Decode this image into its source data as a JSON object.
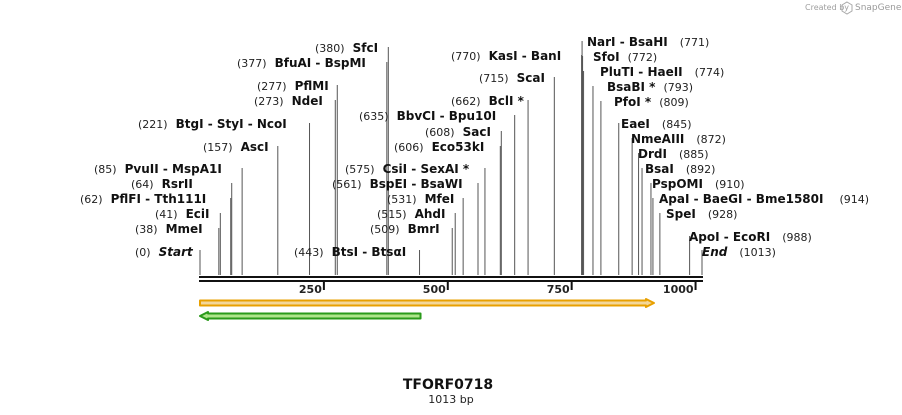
{
  "credit": {
    "created_by": "Created by",
    "brand": "SnapGene"
  },
  "sequence": {
    "name": "TFORF0718",
    "length_label": "1013 bp",
    "length": 1013
  },
  "axis": {
    "ticks": [
      250,
      500,
      750,
      1000
    ]
  },
  "features": {
    "orf_forward": {
      "start": 0,
      "end": 910,
      "color": "#e8a000"
    },
    "orf_reverse": {
      "start": 0,
      "end": 445,
      "color": "#2a9a1a"
    }
  },
  "colors": {
    "backbone": "#111111",
    "orange": "#e8a000",
    "orange_fill": "#f3d79a",
    "green": "#2a9a1a",
    "green_fill": "#aee58a"
  },
  "sites": [
    {
      "pos": "(0)",
      "name": "Start",
      "loc": 0
    },
    {
      "pos": "(38)",
      "name": "MmeI",
      "loc": 38
    },
    {
      "pos": "(41)",
      "name": "EciI",
      "loc": 41
    },
    {
      "pos": "(62)",
      "name": "PflFI  -  Tth111I",
      "loc": 62
    },
    {
      "pos": "(64)",
      "name": "RsrII",
      "loc": 64
    },
    {
      "pos": "(85)",
      "name": "PvuII  -  MspA1I",
      "loc": 85
    },
    {
      "pos": "(157)",
      "name": "AscI",
      "loc": 157
    },
    {
      "pos": "(221)",
      "name": "BtgI  -  StyI  -  NcoI",
      "loc": 221
    },
    {
      "pos": "(273)",
      "name": "NdeI",
      "loc": 273
    },
    {
      "pos": "(277)",
      "name": "PflMI",
      "loc": 277
    },
    {
      "pos": "(377)",
      "name": "BfuAI  -  BspMI",
      "loc": 377
    },
    {
      "pos": "(380)",
      "name": "SfcI",
      "loc": 380
    },
    {
      "pos": "(443)",
      "name": "BtsI  -  BtsαI",
      "loc": 443
    },
    {
      "pos": "(509)",
      "name": "BmrI",
      "loc": 509
    },
    {
      "pos": "(515)",
      "name": "AhdI",
      "loc": 515
    },
    {
      "pos": "(531)",
      "name": "MfeI",
      "loc": 531
    },
    {
      "pos": "(561)",
      "name": "BspEI  -  BsaWI",
      "loc": 561
    },
    {
      "pos": "(575)",
      "name": "CsiI  -  SexAI *",
      "loc": 575
    },
    {
      "pos": "(606)",
      "name": "Eco53kI",
      "loc": 606
    },
    {
      "pos": "(608)",
      "name": "SacI",
      "loc": 608
    },
    {
      "pos": "(635)",
      "name": "BbvCI  -  Bpu10I",
      "loc": 635
    },
    {
      "pos": "(662)",
      "name": "BclI *",
      "loc": 662
    },
    {
      "pos": "(715)",
      "name": "ScaI",
      "loc": 715
    },
    {
      "pos": "(770)",
      "name": "KasI  -  BanI",
      "loc": 770
    },
    {
      "pos": "(771)",
      "name": "NarI  -  BsaHI",
      "loc": 771
    },
    {
      "pos": "(772)",
      "name": "SfoI",
      "loc": 772
    },
    {
      "pos": "(774)",
      "name": "PluTI  -  HaeII",
      "loc": 774
    },
    {
      "pos": "(793)",
      "name": "BsaBI *",
      "loc": 793
    },
    {
      "pos": "(809)",
      "name": "PfoI *",
      "loc": 809
    },
    {
      "pos": "(845)",
      "name": "EaeI",
      "loc": 845
    },
    {
      "pos": "(872)",
      "name": "NmeAIII",
      "loc": 872
    },
    {
      "pos": "(885)",
      "name": "DrdI",
      "loc": 885
    },
    {
      "pos": "(892)",
      "name": "BsaI",
      "loc": 892
    },
    {
      "pos": "(910)",
      "name": "PspOMI",
      "loc": 910
    },
    {
      "pos": "(914)",
      "name": "ApaI  -  BaeGI  -  Bme1580I",
      "loc": 914
    },
    {
      "pos": "(928)",
      "name": "SpeI",
      "loc": 928
    },
    {
      "pos": "(988)",
      "name": "ApoI  -  EcoRI",
      "loc": 988
    },
    {
      "pos": "(1013)",
      "name": "End",
      "loc": 1013
    }
  ]
}
